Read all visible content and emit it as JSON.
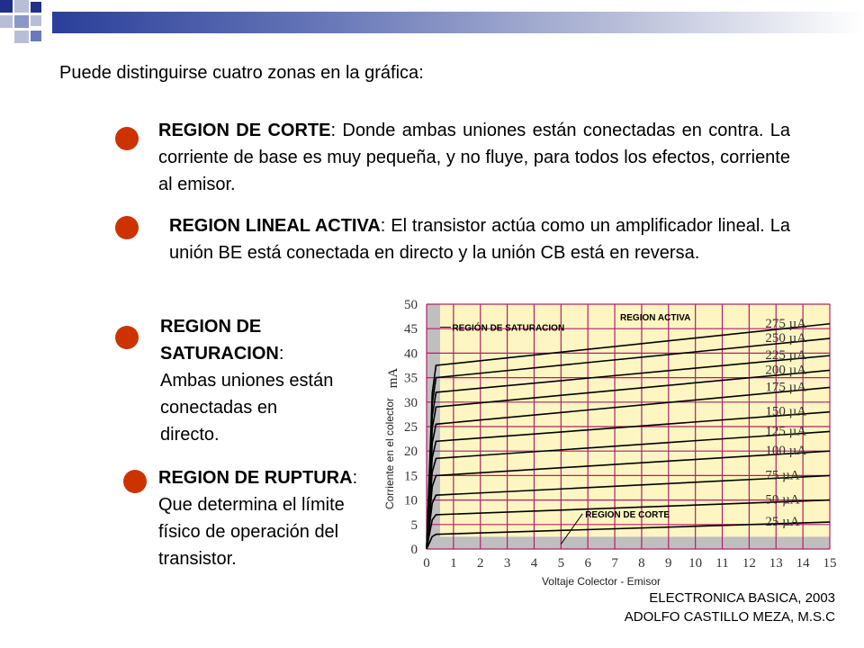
{
  "intro": "Puede distinguirse cuatro zonas en la gráfica:",
  "regions": [
    {
      "title": "REGION DE CORTE",
      "text": ": Donde ambas uniones están conectadas en contra. La corriente de base es muy pequeña, y no fluye, para todos los efectos, corriente al emisor."
    },
    {
      "title": "REGION LINEAL ACTIVA",
      "text": ": El transistor actúa como un amplificador lineal. La unión BE está conectada en directo y la unión CB está en reversa."
    },
    {
      "title": "REGION DE SATURACION",
      "text": ": Ambas uniones están conectadas en directo."
    },
    {
      "title": "REGION DE RUPTURA",
      "text": ": Que determina el límite físico de operación del transistor."
    }
  ],
  "credit": {
    "line1": "ELECTRONICA BASICA, 2003",
    "line2": "ADOLFO CASTILLO MEZA, M.S.C"
  },
  "colors": {
    "bullet": "#cc3300",
    "grid": "#b0206a",
    "chart_bg": "#fdf6c2",
    "shade": "#bfbfbf"
  },
  "chart_data": {
    "type": "line",
    "xlabel": "Voltaje Colector - Emisor",
    "ylabel": "Corriente en el colector",
    "yunit": "mA",
    "x_ticks": [
      "0",
      "1",
      "2",
      "3",
      "4",
      "5",
      "6",
      "7",
      "8",
      "9",
      "10",
      "11",
      "12",
      "13",
      "14",
      "15"
    ],
    "y_ticks": [
      "0",
      "5",
      "10",
      "15",
      "20",
      "25",
      "30",
      "35",
      "40",
      "45",
      "50"
    ],
    "xlim": [
      0,
      15
    ],
    "ylim": [
      0,
      50
    ],
    "grid": true,
    "annotations": [
      "REGIÓN DE SATURACION",
      "REGION ACTIVA",
      "REGION DE CORTE"
    ],
    "series": [
      {
        "name": "25 µA",
        "y_start": 3,
        "y_end": 5.5
      },
      {
        "name": "50 µA",
        "y_start": 7,
        "y_end": 10
      },
      {
        "name": "75 µA",
        "y_start": 11,
        "y_end": 15
      },
      {
        "name": "100 µA",
        "y_start": 15,
        "y_end": 20
      },
      {
        "name": "125 µA",
        "y_start": 18.5,
        "y_end": 24
      },
      {
        "name": "150 µA",
        "y_start": 22,
        "y_end": 28
      },
      {
        "name": "175 µA",
        "y_start": 25.5,
        "y_end": 33
      },
      {
        "name": "200 µA",
        "y_start": 29,
        "y_end": 36.5
      },
      {
        "name": "225 µA",
        "y_start": 32,
        "y_end": 39.5
      },
      {
        "name": "250 µA",
        "y_start": 35,
        "y_end": 43
      },
      {
        "name": "275 µA",
        "y_start": 37.5,
        "y_end": 46
      }
    ]
  }
}
